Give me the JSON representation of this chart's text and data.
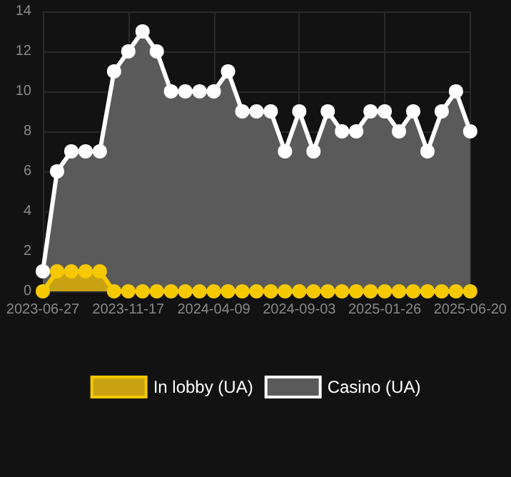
{
  "chart_data": {
    "type": "area",
    "categories": [
      "2023-06-27",
      null,
      null,
      null,
      null,
      null,
      "2023-11-17",
      null,
      null,
      null,
      null,
      null,
      "2024-04-09",
      null,
      null,
      null,
      null,
      null,
      "2024-09-03",
      null,
      null,
      null,
      null,
      null,
      "2025-01-26",
      null,
      null,
      null,
      null,
      null,
      "2025-06-20"
    ],
    "series": [
      {
        "name": "In lobby (UA)",
        "color": "#f5c800",
        "values": [
          0,
          1,
          1,
          1,
          1,
          0,
          0,
          0,
          0,
          0,
          0,
          0,
          0,
          0,
          0,
          0,
          0,
          0,
          0,
          0,
          0,
          0,
          0,
          0,
          0,
          0,
          0,
          0,
          0,
          0,
          0
        ]
      },
      {
        "name": "Casino (UA)",
        "color": "#ffffff",
        "values": [
          1,
          6,
          7,
          7,
          7,
          11,
          12,
          13,
          12,
          10,
          10,
          10,
          10,
          11,
          9,
          9,
          9,
          7,
          9,
          7,
          9,
          8,
          8,
          9,
          9,
          8,
          9,
          7,
          9,
          10,
          8
        ]
      }
    ],
    "ylim": [
      0,
      14
    ],
    "yticks": [
      0,
      2,
      4,
      6,
      8,
      10,
      12,
      14
    ],
    "grid": true,
    "legend": "bottom",
    "marker": "circle",
    "line_style": "solid"
  }
}
